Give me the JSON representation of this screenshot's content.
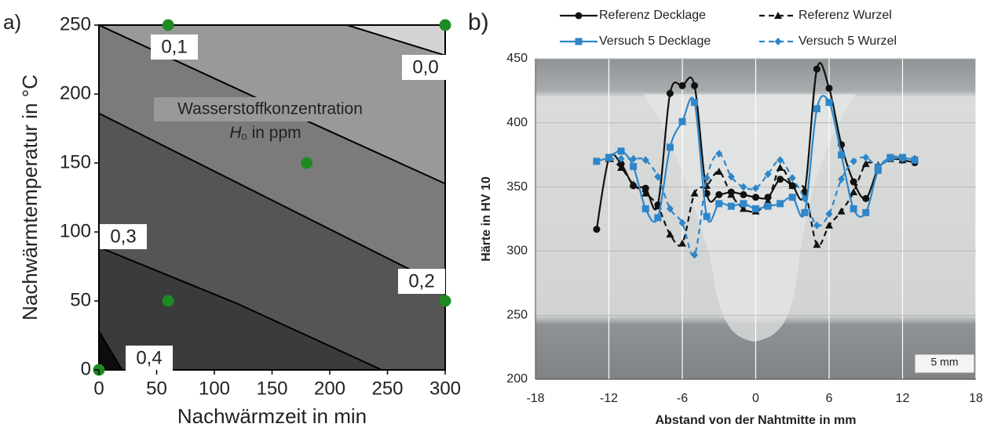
{
  "chart_data": [
    {
      "type": "contour",
      "panel_label": "a)",
      "x_label": "Nachwärmzeit in min",
      "y_label": "Nachwärmtemperatur in °C",
      "xlim": [
        0,
        300
      ],
      "xticks": [
        0,
        50,
        100,
        150,
        200,
        250,
        300
      ],
      "ylim": [
        0,
        250
      ],
      "yticks": [
        0,
        50,
        100,
        150,
        200,
        250
      ],
      "background": "#0d0d0d",
      "contours": [
        {
          "x": [
            0,
            20
          ],
          "y": [
            28,
            0
          ],
          "fill": "#3b3b3b"
        },
        {
          "x": [
            0,
            120,
            245
          ],
          "y": [
            89,
            48,
            0
          ],
          "fill": "#555555"
        },
        {
          "x": [
            0,
            150,
            300
          ],
          "y": [
            186,
            123,
            60
          ],
          "fill": "#7b7b7b"
        },
        {
          "x": [
            0,
            150,
            300
          ],
          "y": [
            250,
            192,
            135
          ],
          "fill": "#999999"
        },
        {
          "x": [
            215,
            300
          ],
          "y": [
            250,
            228
          ],
          "fill": "#d4d4d4"
        }
      ],
      "contour_labels": [
        "0,1",
        "0,0",
        "0,3",
        "0,2",
        "0,4"
      ],
      "annotation": {
        "line1": "Wasserstoffkonzentration",
        "symbol": "H",
        "subscript": "D",
        "unit": "in ppm"
      },
      "points": {
        "x": [
          0,
          60,
          300,
          180,
          60,
          300
        ],
        "y": [
          0,
          250,
          250,
          150,
          50,
          50
        ],
        "color": "#1e8a22"
      }
    },
    {
      "type": "line",
      "panel_label": "b)",
      "x_label": "Abstand von der Nahtmitte in mm",
      "y_label": "Härte in HV 10",
      "scale_bar": "5 mm",
      "xlim": [
        -18,
        18
      ],
      "xticks": [
        -18,
        -12,
        -6,
        0,
        6,
        12,
        18
      ],
      "ylim": [
        200,
        450
      ],
      "yticks": [
        200,
        250,
        300,
        350,
        400,
        450
      ],
      "grid": true,
      "x": [
        -13,
        -12,
        -11,
        -10,
        -9,
        -8,
        -7,
        -6,
        -5,
        -4,
        -3,
        -2,
        -1,
        0,
        1,
        2,
        3,
        4,
        5,
        6,
        7,
        8,
        9,
        10,
        11,
        12,
        13
      ],
      "series": [
        {
          "name": "Referenz Decklage",
          "color": "#111111",
          "marker": "circle",
          "dashed": false,
          "values": [
            317,
            372,
            368,
            351,
            349,
            336,
            423,
            429,
            429,
            345,
            344,
            346,
            344,
            342,
            342,
            356,
            351,
            346,
            442,
            427,
            383,
            354,
            341,
            364,
            372,
            371,
            369
          ]
        },
        {
          "name": "Referenz Wurzel",
          "color": "#111111",
          "marker": "triangle",
          "dashed": true,
          "values": [
            null,
            372,
            365,
            352,
            345,
            335,
            313,
            306,
            345,
            351,
            362,
            344,
            333,
            331,
            339,
            365,
            351,
            348,
            305,
            320,
            331,
            346,
            368,
            367,
            372,
            371,
            372
          ]
        },
        {
          "name": "Versuch 5 Decklage",
          "color": "#2f86c9",
          "marker": "square",
          "dashed": false,
          "values": [
            370,
            373,
            378,
            366,
            333,
            326,
            381,
            401,
            416,
            327,
            337,
            335,
            337,
            333,
            335,
            337,
            342,
            330,
            411,
            416,
            375,
            333,
            330,
            363,
            373,
            373,
            371
          ]
        },
        {
          "name": "Versuch 5 Wurzel",
          "color": "#2f86c9",
          "marker": "diamond",
          "dashed": true,
          "values": [
            null,
            372,
            372,
            372,
            371,
            358,
            333,
            322,
            297,
            357,
            376,
            358,
            350,
            349,
            360,
            371,
            357,
            341,
            320,
            329,
            356,
            370,
            373,
            366,
            372,
            372,
            371
          ]
        }
      ]
    }
  ]
}
